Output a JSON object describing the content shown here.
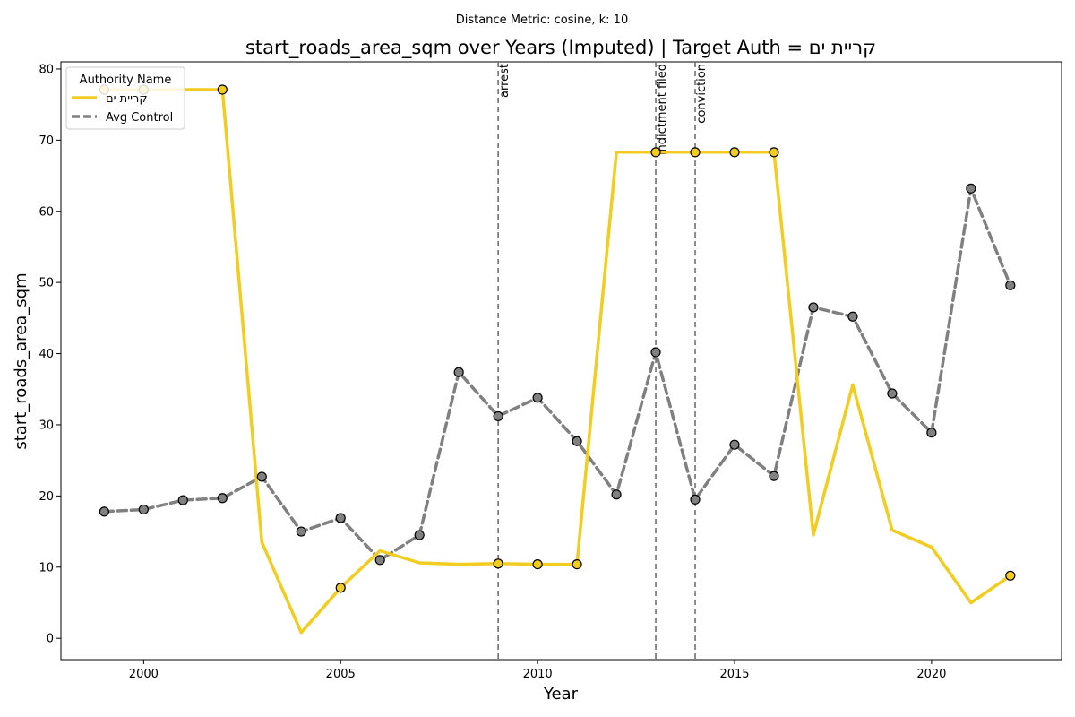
{
  "chart_data": {
    "type": "line",
    "suptitle": "Distance Metric: cosine, k: 10",
    "title": "start_roads_area_sqm over Years (Imputed) | Target Auth = קריית ים",
    "xlabel": "Year",
    "ylabel": "start_roads_area_sqm",
    "xlim": [
      1997.9,
      2023.3
    ],
    "ylim": [
      -3,
      81
    ],
    "xticks": [
      2000,
      2005,
      2010,
      2015,
      2020
    ],
    "yticks": [
      0,
      10,
      20,
      30,
      40,
      50,
      60,
      70,
      80
    ],
    "x": [
      1999,
      2000,
      2001,
      2002,
      2003,
      2004,
      2005,
      2006,
      2007,
      2008,
      2009,
      2010,
      2011,
      2012,
      2013,
      2014,
      2015,
      2016,
      2017,
      2018,
      2019,
      2020,
      2021,
      2022
    ],
    "legend": {
      "title": "Authority Name",
      "location": "upper-left"
    },
    "series": [
      {
        "name": "קריית ים",
        "color": "#F2CC1E",
        "style": "solid",
        "values": [
          77.1,
          77.1,
          77.1,
          77.1,
          13.5,
          0.8,
          7.1,
          12.3,
          10.6,
          10.4,
          10.5,
          10.4,
          10.4,
          68.3,
          68.3,
          68.3,
          68.3,
          68.3,
          14.5,
          35.6,
          15.2,
          12.8,
          5.0,
          8.8
        ],
        "marker_x": [
          1999,
          2000,
          2002,
          2005,
          2009,
          2010,
          2011,
          2013,
          2014,
          2015,
          2016,
          2022
        ],
        "marker_color": "#F2CC1E"
      },
      {
        "name": "Avg Control",
        "color": "#808080",
        "style": "dashed",
        "values": [
          17.8,
          18.1,
          19.4,
          19.7,
          22.7,
          15.0,
          16.9,
          11.0,
          14.5,
          37.4,
          31.2,
          33.8,
          27.7,
          20.2,
          40.2,
          19.5,
          27.2,
          22.8,
          46.5,
          45.2,
          34.4,
          28.9,
          63.2,
          49.6
        ],
        "marker_x": [
          1999,
          2000,
          2001,
          2002,
          2003,
          2004,
          2005,
          2006,
          2007,
          2008,
          2009,
          2010,
          2011,
          2012,
          2013,
          2014,
          2015,
          2016,
          2017,
          2018,
          2019,
          2020,
          2021,
          2022
        ],
        "marker_color": "#808080"
      }
    ],
    "events": [
      {
        "x": 2009,
        "label": "arrest"
      },
      {
        "x": 2013,
        "label": "indictment filed"
      },
      {
        "x": 2014,
        "label": "conviction"
      }
    ],
    "grid": false
  }
}
